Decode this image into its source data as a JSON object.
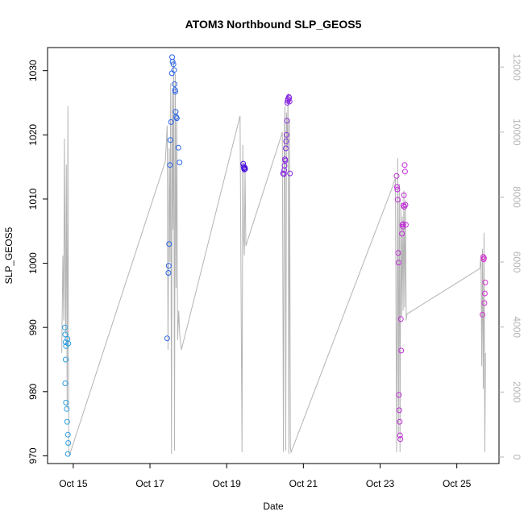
{
  "chart_data": {
    "type": "scatter",
    "title": "ATOM3 Northbound SLP_GEOS5",
    "xlabel": "Date",
    "ylabel": "SLP_GEOS5",
    "x_tick_labels": [
      "Oct 15",
      "Oct 17",
      "Oct 19",
      "Oct 21",
      "Oct 23",
      "Oct 25"
    ],
    "x_tick_days": [
      15,
      17,
      19,
      21,
      23,
      25
    ],
    "xlim_days": [
      14.33,
      26.1
    ],
    "ylim": [
      968.8,
      1033.6
    ],
    "y_ticks": [
      970,
      980,
      990,
      1000,
      1010,
      1020,
      1030
    ],
    "y2_ticks": [
      0,
      2000,
      4000,
      6000,
      8000,
      10000,
      12000
    ],
    "y2_tick_labels": [
      "0",
      "2000",
      "4000",
      "6000",
      "8000",
      "10000",
      "12000"
    ],
    "y2lim": [
      -200,
      12600
    ],
    "grid": false,
    "colors": {
      "altitude_line": "#b4b4b4",
      "axes": "#000000",
      "right_axis": "#b4b4b4",
      "series_1": "#2d9fe0",
      "series_2": "#2a62e8",
      "series_3": "#4a10e0",
      "series_4": "#8a2be2",
      "series_5": "#c02ad8",
      "series_6": "#d433d0"
    },
    "series": [
      {
        "color_key": "series_1",
        "x": [
          14.78,
          14.79,
          14.8,
          14.81,
          14.8,
          14.79,
          14.81,
          14.83,
          14.84,
          14.86,
          14.87,
          14.86,
          14.85,
          14.87
        ],
        "y": [
          990.0,
          988.9,
          987.7,
          987.1,
          985.0,
          981.3,
          978.3,
          977.3,
          975.3,
          973.3,
          972.0,
          970.3,
          988.2,
          987.5
        ]
      },
      {
        "color_key": "series_2",
        "x": [
          17.45,
          17.48,
          17.49,
          17.5,
          17.52,
          17.53,
          17.55,
          17.57,
          17.58,
          17.59,
          17.61,
          17.63,
          17.64,
          17.65,
          17.66,
          17.67,
          17.68,
          17.7,
          17.74,
          17.77
        ],
        "y": [
          988.3,
          998.5,
          999.6,
          1003.0,
          1015.3,
          1019.2,
          1022.0,
          1029.6,
          1032.1,
          1031.4,
          1031.0,
          1030.1,
          1027.9,
          1027.0,
          1026.7,
          1023.6,
          1022.8,
          1022.6,
          1018.0,
          1015.7
        ]
      },
      {
        "color_key": "series_3",
        "x": [
          19.43,
          19.44,
          19.45,
          19.46,
          19.47,
          19.48
        ],
        "y": [
          1015.5,
          1015.1,
          1014.8,
          1014.6,
          1014.9,
          1014.7
        ]
      },
      {
        "color_key": "series_4",
        "x": [
          20.47,
          20.49,
          20.5,
          20.51,
          20.52,
          20.53,
          20.54,
          20.55,
          20.56,
          20.57,
          20.58,
          20.59,
          20.6,
          20.61,
          20.62,
          20.63,
          20.64,
          20.65
        ],
        "y": [
          1014.0,
          1013.9,
          1014.5,
          1015.2,
          1016.2,
          1016.0,
          1017.9,
          1019.0,
          1020.0,
          1022.2,
          1025.0,
          1025.3,
          1025.6,
          1025.5,
          1025.9,
          1025.8,
          1025.2,
          1014.0
        ]
      },
      {
        "color_key": "series_5",
        "x": [
          23.43,
          23.44,
          23.45,
          23.46,
          23.47,
          23.48,
          23.49,
          23.5,
          23.51,
          23.52,
          23.53,
          23.54,
          23.55,
          23.57,
          23.58,
          23.59,
          23.6,
          23.61,
          23.62,
          23.63,
          23.64,
          23.65,
          23.66,
          23.67
        ],
        "y": [
          1013.6,
          1011.9,
          1011.5,
          1009.9,
          1001.6,
          1000.1,
          979.5,
          977.1,
          975.3,
          973.2,
          972.6,
          991.3,
          986.4,
          1004.6,
          1006.0,
          1005.7,
          1006.1,
          1009.0,
          1010.6,
          1008.8,
          1015.3,
          1014.3,
          1009.1,
          1006.0
        ]
      },
      {
        "color_key": "series_6",
        "x": [
          25.67,
          25.69,
          25.7,
          25.72,
          25.73,
          25.74,
          25.71
        ],
        "y": [
          992.0,
          1001.0,
          1000.6,
          993.8,
          995.3,
          997.0,
          1000.8
        ]
      }
    ],
    "altitude_line": {
      "x": [
        14.7,
        14.73,
        14.75,
        14.77,
        14.79,
        14.8,
        14.82,
        14.84,
        14.86,
        14.88,
        14.9,
        17.4,
        17.45,
        17.47,
        17.5,
        17.52,
        17.54,
        17.56,
        17.58,
        17.6,
        17.62,
        17.64,
        17.66,
        17.68,
        17.7,
        17.72,
        17.75,
        17.78,
        17.82,
        19.35,
        19.4,
        19.42,
        19.44,
        19.46,
        19.48,
        19.5,
        20.4,
        20.45,
        20.48,
        20.5,
        20.52,
        20.54,
        20.56,
        20.58,
        20.6,
        20.62,
        20.64,
        20.66,
        20.68,
        23.35,
        23.4,
        23.43,
        23.46,
        23.48,
        23.5,
        23.52,
        23.54,
        23.56,
        23.58,
        23.6,
        23.62,
        23.64,
        23.66,
        23.68,
        23.7,
        25.6,
        25.63,
        25.65,
        25.67,
        25.69,
        25.71,
        25.73,
        25.75
      ],
      "y": [
        3200,
        6200,
        4200,
        9800,
        5000,
        3800,
        9000,
        1500,
        10800,
        200,
        50,
        9100,
        10200,
        3300,
        9500,
        6000,
        11500,
        100,
        11200,
        7000,
        12200,
        200,
        11800,
        5200,
        10600,
        3600,
        4500,
        3700,
        3300,
        10500,
        150,
        9600,
        6800,
        6200,
        8900,
        6500,
        9800,
        10000,
        150,
        9700,
        10800,
        200,
        10600,
        9500,
        11200,
        100,
        10400,
        300,
        150,
        8400,
        8600,
        150,
        9200,
        700,
        8400,
        150,
        7900,
        4300,
        7400,
        4500,
        8200,
        4600,
        7900,
        4200,
        4400,
        5800,
        6200,
        2800,
        6400,
        2100,
        6900,
        150,
        3200
      ]
    }
  }
}
